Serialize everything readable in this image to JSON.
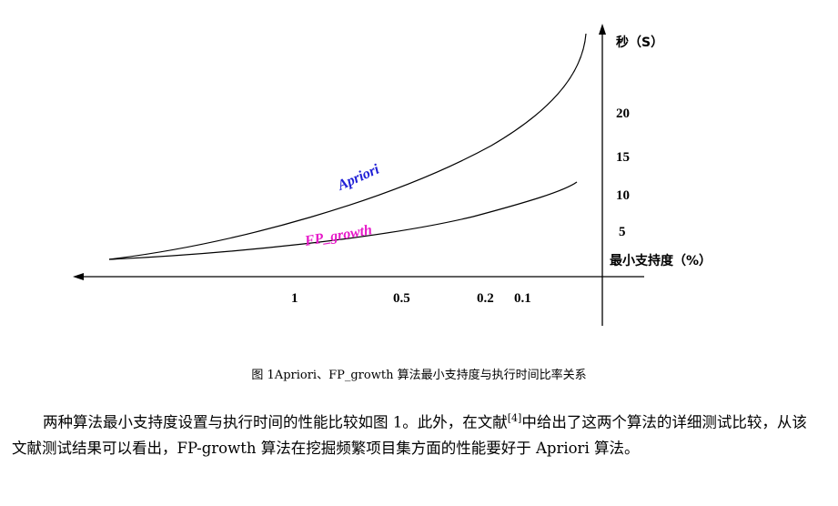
{
  "figure": {
    "chart_data": {
      "type": "line",
      "x_axis": {
        "label": "最小支持度（%）",
        "ticks": [
          "1",
          "0.5",
          "0.2",
          "0.1"
        ]
      },
      "y_axis": {
        "label": "秒（S）",
        "ticks": [
          "20",
          "15",
          "10",
          "5"
        ]
      },
      "series": [
        {
          "name": "Apriori",
          "color": "#1f1fd6"
        },
        {
          "name": "FP_growth",
          "color": "#e619c8"
        }
      ]
    },
    "caption": "图 1Apriori、FP_growth 算法最小支持度与执行时间比率关系"
  },
  "paragraph": {
    "before_ref": "两种算法最小支持度设置与执行时间的性能比较如图 1。此外，在文献",
    "ref": "[4]",
    "after_ref": "中给出了这两个算法的详细测试比较，从该文献测试结果可以看出，FP-growth 算法在挖掘频繁项目集方面的性能要好于 Apriori 算法。"
  }
}
